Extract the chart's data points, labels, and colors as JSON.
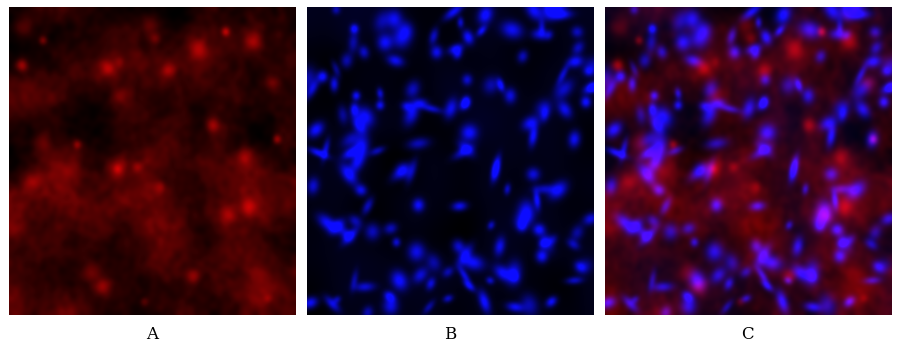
{
  "panels": [
    "A",
    "B",
    "C"
  ],
  "panel_label_fontsize": 12,
  "panel_label_color": "black",
  "background_color": "#ffffff",
  "fig_width": 9.0,
  "fig_height": 3.46,
  "dpi": 100,
  "seed_red": 42,
  "seed_blue": 43,
  "n_blue_nuclei": 120,
  "n_red_cells": 40,
  "blue_sigma": 4,
  "red_sigma": 12,
  "label_fontsize": 12
}
